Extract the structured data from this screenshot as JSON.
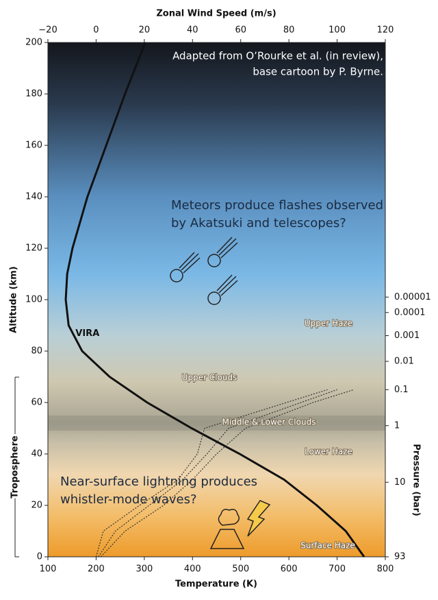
{
  "chart_data": {
    "type": "line",
    "x_label": "Temperature (K)",
    "x2_label": "Zonal Wind Speed (m/s)",
    "y_label": "Altitude (km)",
    "y2_label": "Pressure (bar)",
    "xlim": [
      100,
      800
    ],
    "xticks": [
      100,
      200,
      300,
      400,
      500,
      600,
      700,
      800
    ],
    "x2lim": [
      -20,
      120
    ],
    "x2ticks": [
      {
        "value": -20,
        "label": "−20"
      },
      0,
      20,
      40,
      60,
      80,
      100,
      120
    ],
    "ylim": [
      0,
      200
    ],
    "yticks": [
      0,
      20,
      40,
      60,
      80,
      100,
      120,
      140,
      160,
      180,
      200
    ],
    "y2ticks": [
      {
        "value": 1e-05,
        "altitude": 101
      },
      {
        "value": 0.0001,
        "altitude": 95
      },
      {
        "value": 0.001,
        "altitude": 86
      },
      {
        "value": 0.01,
        "altitude": 76
      },
      {
        "value": 0.1,
        "altitude": 65
      },
      {
        "value": 1,
        "altitude": 51
      },
      {
        "value": 10,
        "altitude": 29
      },
      {
        "value": 93,
        "altitude": 0
      }
    ],
    "series": [
      {
        "name": "VIRA",
        "color": "#111111",
        "axis": "x",
        "x": [
          756,
          718,
          658,
          590,
          498,
          398,
          306,
          228,
          171,
          143,
          137,
          140,
          151,
          182,
          221,
          260,
          302
        ],
        "y": [
          0,
          10,
          20,
          30,
          40,
          50,
          60,
          70,
          80,
          90,
          100,
          110,
          120,
          140,
          160,
          180,
          200
        ]
      },
      {
        "color": "#333333",
        "axis": "x2",
        "x": [
          0,
          3,
          18,
          34,
          42,
          45,
          79,
          96
        ],
        "y": [
          0,
          10,
          20,
          30,
          40,
          50,
          60,
          65
        ]
      },
      {
        "color": "#333333",
        "axis": "x2",
        "x": [
          1,
          8,
          22,
          36,
          46,
          55,
          85,
          100
        ],
        "y": [
          0,
          10,
          20,
          30,
          40,
          50,
          60,
          65
        ]
      },
      {
        "color": "#333333",
        "axis": "x2",
        "x": [
          2,
          12,
          28,
          40,
          50,
          62,
          90,
          107
        ],
        "y": [
          0,
          10,
          20,
          30,
          40,
          50,
          60,
          65
        ]
      }
    ],
    "region_labels": [
      "Upper Haze",
      "Upper Clouds",
      "Middle & Lower Clouds",
      "Lower Haze",
      "Surface Haze"
    ],
    "bracket_label": "Troposphere",
    "credit": [
      "Adapted from O’Rourke et al. (in review),",
      "base cartoon by P. Byrne."
    ],
    "meteor_note": [
      "Meteors produce flashes observed",
      "by Akatsuki and telescopes?"
    ],
    "lightning_note": [
      "Near-surface lightning produces",
      "whistler-mode waves?"
    ]
  }
}
